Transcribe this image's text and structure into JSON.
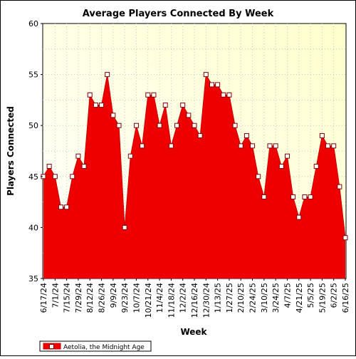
{
  "chart_data": {
    "type": "area",
    "title": "Average Players Connected By Week",
    "xlabel": "Week",
    "ylabel": "Players Connected",
    "ylim": [
      35,
      60
    ],
    "yticks": [
      35,
      40,
      45,
      50,
      55,
      60
    ],
    "grid": true,
    "legend_position": "bottom-left",
    "colors": {
      "plot_background_top": "#ffffcc",
      "plot_background_bottom": "#ffffff",
      "series_fill": "#ee0000",
      "series_line": "#cc0000",
      "marker_fill": "#ffffff",
      "marker_stroke": "#7f0000",
      "grid": "#c8c8c8"
    },
    "x_tick_labels": [
      "6/17/24",
      "7/1/24",
      "7/15/24",
      "7/29/24",
      "8/12/24",
      "8/26/24",
      "9/9/24",
      "9/23/24",
      "10/7/24",
      "10/21/24",
      "11/4/24",
      "11/18/24",
      "12/2/24",
      "12/16/24",
      "12/30/24",
      "1/13/25",
      "1/27/25",
      "2/10/25",
      "2/24/25",
      "3/10/25",
      "3/24/25",
      "4/7/25",
      "4/21/25",
      "5/5/25",
      "5/19/25",
      "6/2/25",
      "6/16/25"
    ],
    "x": [
      "6/17/24",
      "6/24/24",
      "7/1/24",
      "7/8/24",
      "7/15/24",
      "7/22/24",
      "7/29/24",
      "8/5/24",
      "8/12/24",
      "8/19/24",
      "8/26/24",
      "9/2/24",
      "9/9/24",
      "9/16/24",
      "9/23/24",
      "9/30/24",
      "10/7/24",
      "10/14/24",
      "10/21/24",
      "10/28/24",
      "11/4/24",
      "11/11/24",
      "11/18/24",
      "11/25/24",
      "12/2/24",
      "12/9/24",
      "12/16/24",
      "12/23/24",
      "12/30/24",
      "1/6/25",
      "1/13/25",
      "1/20/25",
      "1/27/25",
      "2/3/25",
      "2/10/25",
      "2/17/25",
      "2/24/25",
      "3/3/25",
      "3/10/25",
      "3/17/25",
      "3/24/25",
      "3/31/25",
      "4/7/25",
      "4/14/25",
      "4/21/25",
      "4/28/25",
      "5/5/25",
      "5/12/25",
      "5/19/25",
      "5/26/25",
      "6/2/25",
      "6/9/25",
      "6/16/25"
    ],
    "series": [
      {
        "name": "Aetolia, the Midnight Age",
        "values": [
          45,
          46,
          45,
          42,
          42,
          45,
          47,
          46,
          53,
          52,
          52,
          55,
          51,
          50,
          40,
          47,
          50,
          48,
          53,
          53,
          50,
          52,
          48,
          50,
          52,
          51,
          50,
          49,
          55,
          54,
          54,
          53,
          53,
          50,
          48,
          49,
          48,
          45,
          43,
          48,
          48,
          46,
          47,
          43,
          41,
          43,
          43,
          46,
          49,
          48,
          48,
          44,
          39
        ]
      }
    ]
  }
}
